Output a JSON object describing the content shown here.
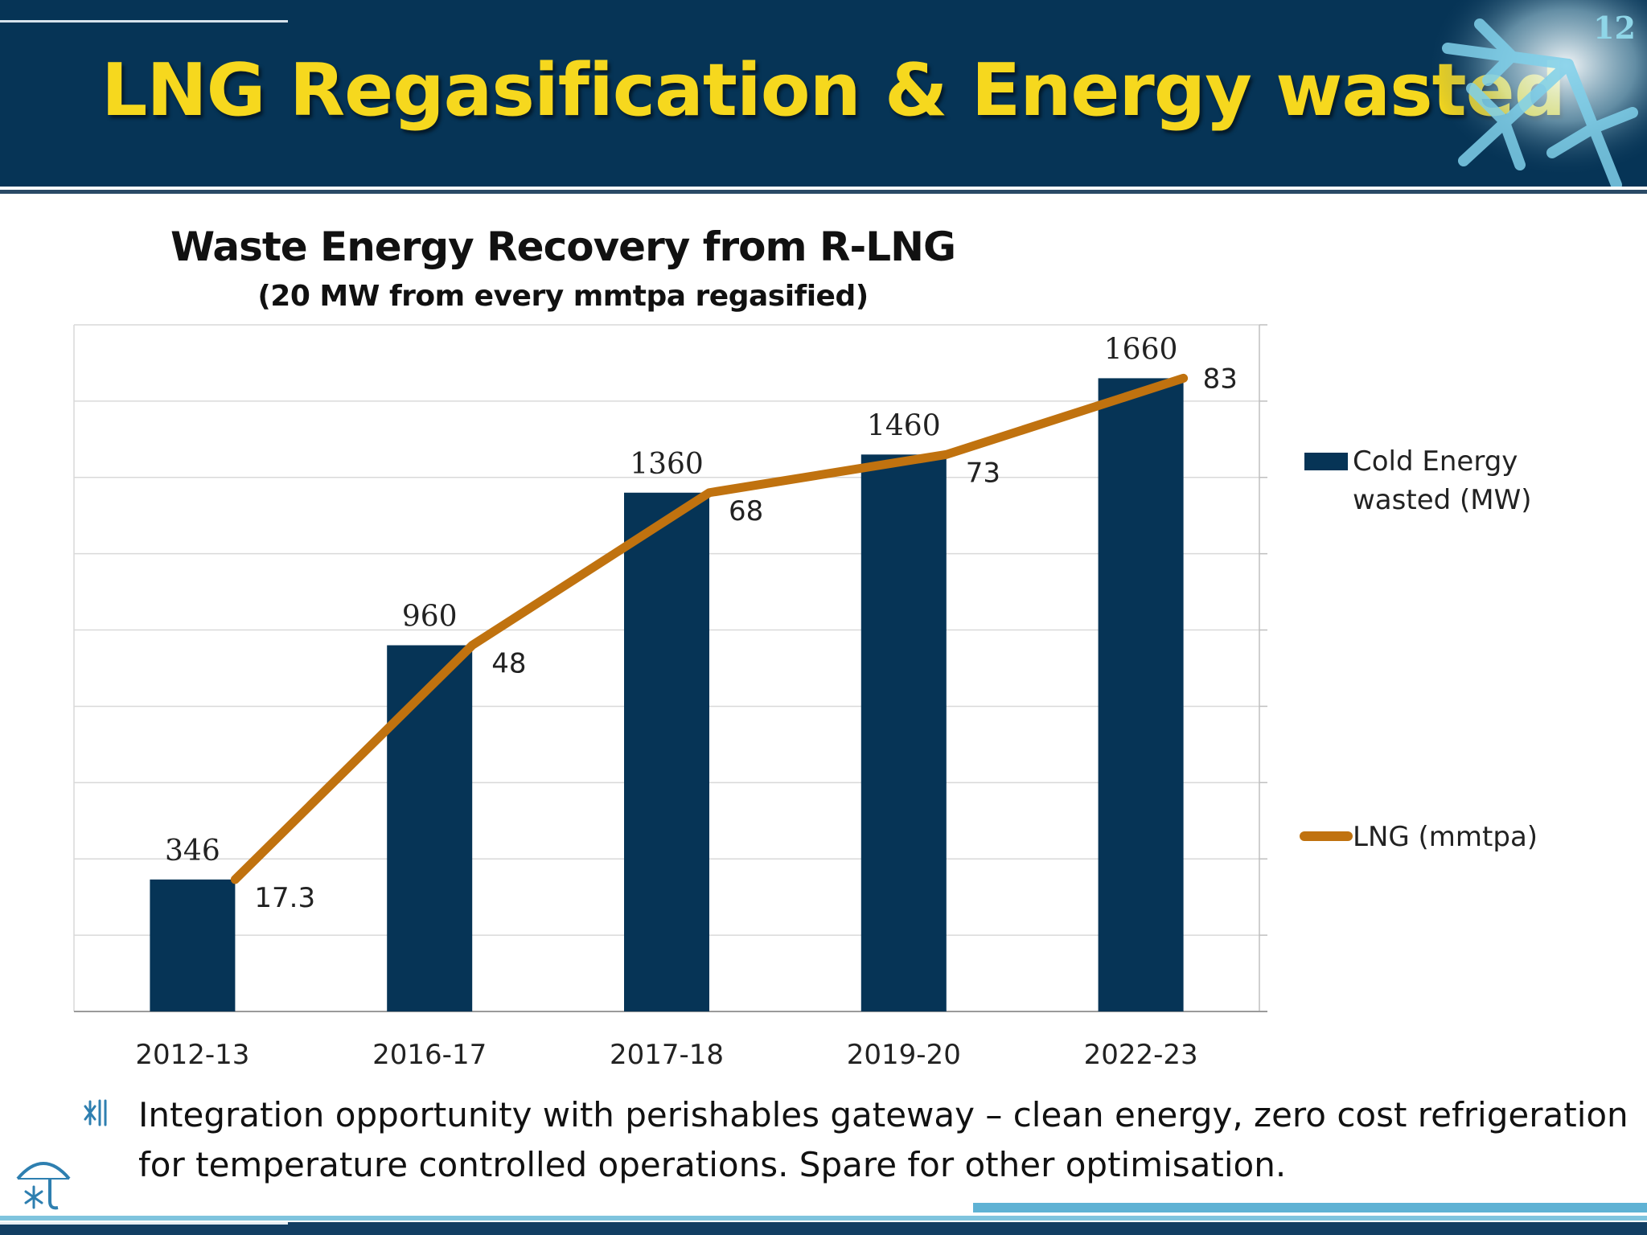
{
  "slide": {
    "title": "LNG Regasification & Energy wasted",
    "number": "12"
  },
  "chart_data": {
    "type": "bar",
    "title": "Waste Energy Recovery from R-LNG",
    "subtitle": "(20 MW from every mmtpa regasified)",
    "categories": [
      "2012-13",
      "2016-17",
      "2017-18",
      "2019-20",
      "2022-23"
    ],
    "series": [
      {
        "name": "Cold Energy wasted (MW)",
        "kind": "bar",
        "color": "#063456",
        "values": [
          346,
          960,
          1360,
          1460,
          1660
        ],
        "labels": [
          "346",
          "960",
          "1360",
          "1460",
          "1660"
        ],
        "axis": "primary"
      },
      {
        "name": "LNG (mmtpa)",
        "kind": "line",
        "color": "#c0720f",
        "values": [
          17.3,
          48,
          68,
          73,
          83
        ],
        "labels": [
          "17.3",
          "48",
          "68",
          "73",
          "83"
        ],
        "axis": "secondary"
      }
    ],
    "ylim": [
      0,
      1800
    ],
    "y2lim": [
      0,
      90
    ],
    "grid": true,
    "legend_position": "right"
  },
  "legend": {
    "bar_line1": "Cold Energy",
    "bar_line2": "wasted (MW)",
    "line_label": "LNG (mmtpa)"
  },
  "bullet": {
    "icon": "snowflake-bullet-icon",
    "text": "Integration opportunity with perishables gateway – clean energy, zero cost refrigeration for temperature controlled operations. Spare for other optimisation."
  },
  "logo": {
    "icon": "umbrella-snowflake-logo-icon"
  }
}
